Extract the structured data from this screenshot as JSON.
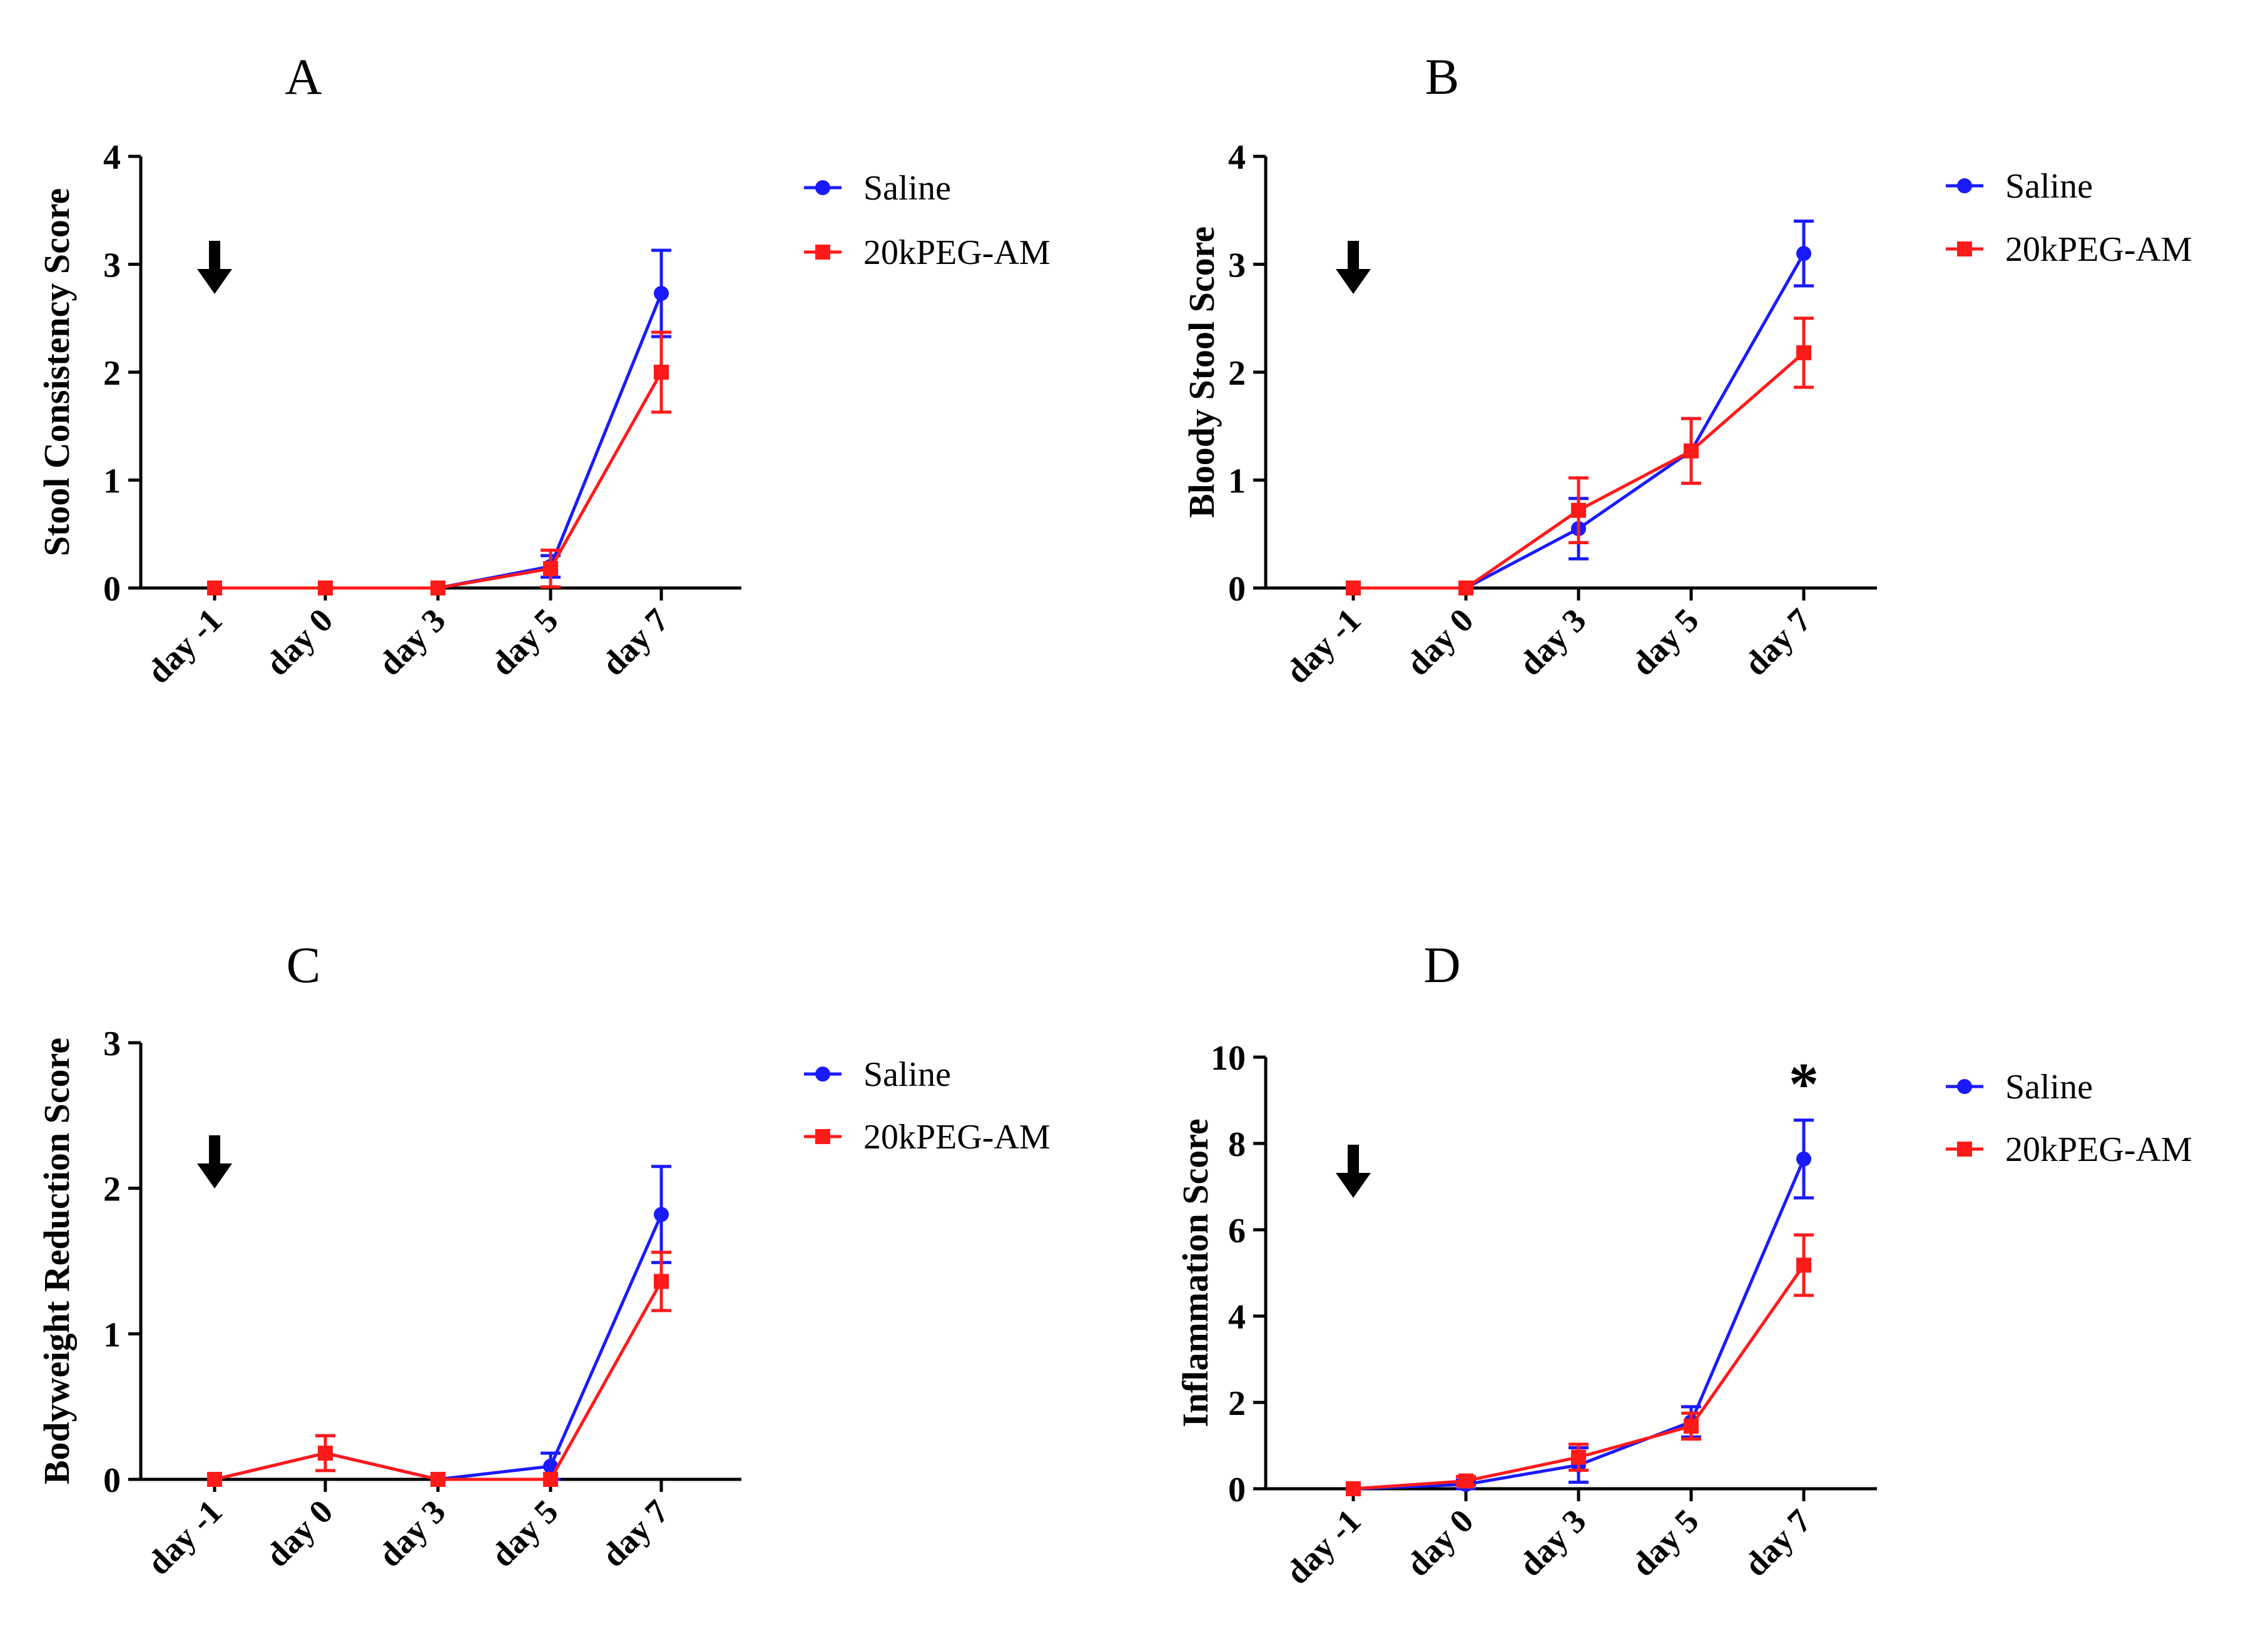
{
  "figure": {
    "background": "#ffffff"
  },
  "chart_data": [
    {
      "panel": "A",
      "type": "line",
      "title": "A",
      "xlabel": "",
      "ylabel": "Stool Consistency Score",
      "categories": [
        "day -1",
        "day 0",
        "day 3",
        "day 5",
        "day 7"
      ],
      "ylim": [
        0,
        4
      ],
      "yticks": [
        0,
        1,
        2,
        3,
        4
      ],
      "annotations": [
        {
          "type": "arrow-down",
          "category": "day -1"
        }
      ],
      "series": [
        {
          "name": "Saline",
          "color": "#1a1aff",
          "marker": "circle",
          "values": [
            0,
            0,
            0,
            0.2,
            2.73
          ],
          "errors": [
            0,
            0,
            0,
            0.1,
            0.4
          ]
        },
        {
          "name": "20kPEG-AM",
          "color": "#ff1a1a",
          "marker": "square",
          "values": [
            0,
            0,
            0,
            0.18,
            2.0
          ],
          "errors": [
            0,
            0,
            0,
            0.17,
            0.37
          ]
        }
      ],
      "legend": "right"
    },
    {
      "panel": "B",
      "type": "line",
      "title": "B",
      "xlabel": "",
      "ylabel": "Bloody Stool Score",
      "categories": [
        "day -1",
        "day 0",
        "day 3",
        "day 5",
        "day 7"
      ],
      "ylim": [
        0,
        4
      ],
      "yticks": [
        0,
        1,
        2,
        3,
        4
      ],
      "annotations": [
        {
          "type": "arrow-down",
          "category": "day -1"
        }
      ],
      "series": [
        {
          "name": "Saline",
          "color": "#1a1aff",
          "marker": "circle",
          "values": [
            0,
            0,
            0.55,
            1.27,
            3.1
          ],
          "errors": [
            0,
            0,
            0.28,
            0.3,
            0.3
          ]
        },
        {
          "name": "20kPEG-AM",
          "color": "#ff1a1a",
          "marker": "square",
          "values": [
            0,
            0,
            0.72,
            1.27,
            2.18
          ],
          "errors": [
            0,
            0,
            0.3,
            0.3,
            0.32
          ]
        }
      ],
      "legend": "right"
    },
    {
      "panel": "C",
      "type": "line",
      "title": "C",
      "xlabel": "",
      "ylabel": "Bodyweight Reduction Score",
      "categories": [
        "day -1",
        "day 0",
        "day 3",
        "day 5",
        "day 7"
      ],
      "ylim": [
        0,
        3
      ],
      "yticks": [
        0,
        1,
        2,
        3
      ],
      "annotations": [
        {
          "type": "arrow-down",
          "category": "day -1"
        }
      ],
      "series": [
        {
          "name": "Saline",
          "color": "#1a1aff",
          "marker": "circle",
          "values": [
            0,
            0.18,
            0,
            0.09,
            1.82
          ],
          "errors": [
            0,
            0.12,
            0,
            0.09,
            0.33
          ]
        },
        {
          "name": "20kPEG-AM",
          "color": "#ff1a1a",
          "marker": "square",
          "values": [
            0,
            0.18,
            0,
            0,
            1.36
          ],
          "errors": [
            0,
            0.12,
            0,
            0,
            0.2
          ]
        }
      ],
      "legend": "right"
    },
    {
      "panel": "D",
      "type": "line",
      "title": "D",
      "xlabel": "",
      "ylabel": "Inflammation Score",
      "categories": [
        "day -1",
        "day 0",
        "day 3",
        "day 5",
        "day 7"
      ],
      "ylim": [
        0,
        10
      ],
      "yticks": [
        0,
        2,
        4,
        6,
        8,
        10
      ],
      "annotations": [
        {
          "type": "arrow-down",
          "category": "day -1"
        },
        {
          "type": "text",
          "category": "day 7",
          "text": "*"
        }
      ],
      "series": [
        {
          "name": "Saline",
          "color": "#1a1aff",
          "marker": "circle",
          "values": [
            0,
            0.1,
            0.55,
            1.55,
            7.64
          ],
          "errors": [
            0,
            0.1,
            0.4,
            0.35,
            0.9
          ]
        },
        {
          "name": "20kPEG-AM",
          "color": "#ff1a1a",
          "marker": "square",
          "values": [
            0,
            0.18,
            0.73,
            1.45,
            5.18
          ],
          "errors": [
            0,
            0.1,
            0.3,
            0.3,
            0.7
          ]
        }
      ],
      "legend": "right"
    }
  ]
}
